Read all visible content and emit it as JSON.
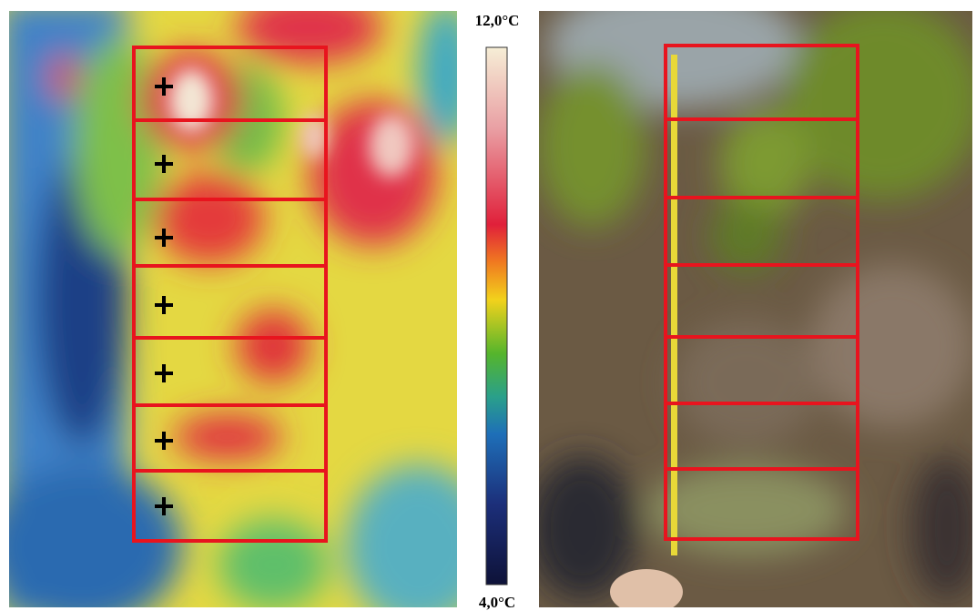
{
  "scale": {
    "max_label": "12,0°C",
    "min_label": "4,0°C"
  }
}
